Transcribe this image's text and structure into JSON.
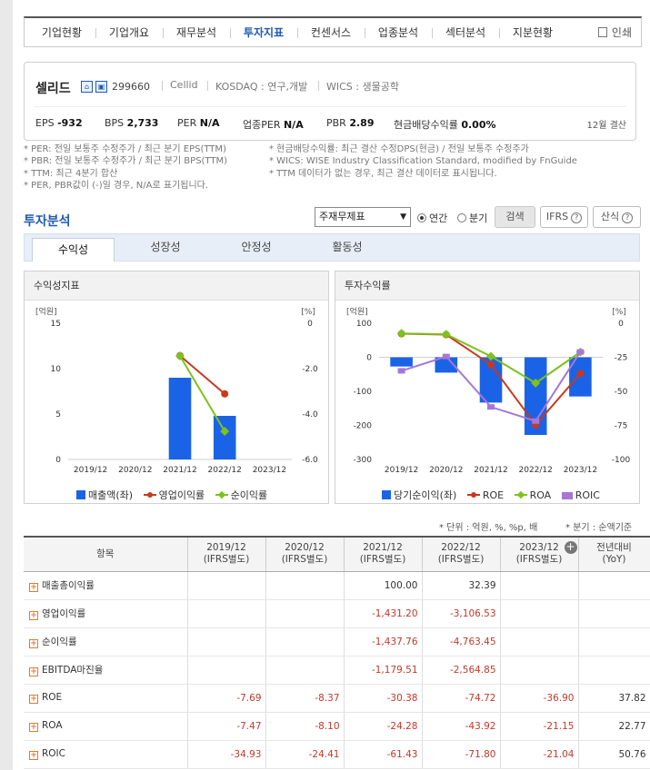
{
  "nav": {
    "items": [
      "기업현황",
      "기업개요",
      "재무분석",
      "투자지표",
      "컨센서스",
      "업종분석",
      "섹터분석",
      "지분현황"
    ],
    "active_index": 3,
    "print_label": "인쇄"
  },
  "company": {
    "name": "셀리드",
    "code": "299660",
    "eng_name": "Cellid",
    "market": "KOSDAQ : 연구,개발",
    "wics": "WICS : 생물공학",
    "icon1": "home-icon",
    "icon2": "building-icon",
    "metrics": [
      {
        "label": "EPS",
        "value": "-932"
      },
      {
        "label": "BPS",
        "value": "2,733"
      },
      {
        "label": "PER",
        "value": "N/A"
      },
      {
        "label": "업종PER",
        "value": "N/A"
      },
      {
        "label": "PBR",
        "value": "2.89"
      },
      {
        "label": "현금배당수익률",
        "value": "0.00%"
      }
    ],
    "settlement": "12월 결산"
  },
  "notes": {
    "left": [
      "* PER: 전일 보통주 수정주가 / 최근 분기 EPS(TTM)",
      "* PBR: 전일 보통주 수정주가 / 최근 분기 BPS(TTM)",
      "* TTM: 최근 4분기 합산",
      "* PER, PBR값이 (-)일 경우, N/A로 표기됩니다."
    ],
    "right": [
      "* 현금배당수익률: 최근 결산 수정DPS(현금) / 전일 보통주 수정주가",
      "* WICS: WISE Industry Classification Standard, modified by FnGuide",
      "* TTM 데이터가 없는 경우, 최근 결산 데이터로 표시됩니다."
    ]
  },
  "analysis": {
    "title": "투자분석",
    "select_value": "주재무제표",
    "radio_annual": "연간",
    "radio_quarter": "분기",
    "selected_radio": "annual",
    "search_btn": "검색",
    "ifrs_btn": "IFRS",
    "formula_btn": "산식",
    "tabs": [
      "수익성",
      "성장성",
      "안정성",
      "활동성"
    ],
    "active_tab": 0
  },
  "colors": {
    "blue": "#1b63e6",
    "red": "#c7391e",
    "green": "#7dc21e",
    "purple": "#a776d6",
    "accent": "#1f5ab4",
    "negative": "#c0392b"
  },
  "charts": {
    "left_title": "수익성지표",
    "right_title": "투자수익률",
    "left_legend": [
      "매출액(좌)",
      "영업이익률",
      "순이익률"
    ],
    "right_legend": [
      "당기순이익(좌)",
      "ROE",
      "ROA",
      "ROIC"
    ]
  },
  "chart_data": [
    {
      "type": "bar",
      "title": "수익성지표",
      "categories": [
        "2019/12",
        "2020/12",
        "2021/12",
        "2022/12",
        "2023/12"
      ],
      "left_axis": {
        "label": "[억원]",
        "range": [
          0,
          15
        ],
        "ticks": [
          "15",
          "10",
          "5",
          "0"
        ]
      },
      "right_axis": {
        "label": "[%]",
        "range": [
          -6.0,
          0
        ],
        "ticks": [
          "0",
          "-2.0",
          "-4.0",
          "-6.0"
        ]
      },
      "series": [
        {
          "name": "매출액(좌)",
          "kind": "bar",
          "axis": "left",
          "values": [
            null,
            null,
            9.0,
            4.8,
            null
          ]
        },
        {
          "name": "영업이익률",
          "kind": "line",
          "axis": "right",
          "note": "x100",
          "values": [
            null,
            null,
            -1.43,
            -3.11,
            null
          ]
        },
        {
          "name": "순이익률",
          "kind": "line",
          "axis": "right",
          "note": "x100",
          "values": [
            null,
            null,
            -1.44,
            -4.76,
            null
          ]
        }
      ]
    },
    {
      "type": "bar",
      "title": "투자수익률",
      "categories": [
        "2019/12",
        "2020/12",
        "2021/12",
        "2022/12",
        "2023/12"
      ],
      "left_axis": {
        "label": "[억원]",
        "range": [
          -300,
          100
        ],
        "ticks": [
          "100",
          "0",
          "-100",
          "-200",
          "-300"
        ]
      },
      "right_axis": {
        "label": "[%]",
        "range": [
          -100,
          0
        ],
        "ticks": [
          "0",
          "-25",
          "-50",
          "-75",
          "-100"
        ]
      },
      "series": [
        {
          "name": "당기순이익(좌)",
          "kind": "bar",
          "axis": "left",
          "values": [
            -27,
            -45,
            -133,
            -228,
            -115
          ]
        },
        {
          "name": "ROE",
          "kind": "line",
          "axis": "right",
          "values": [
            -7.69,
            -8.37,
            -30.38,
            -74.72,
            -36.9
          ]
        },
        {
          "name": "ROA",
          "kind": "line",
          "axis": "right",
          "values": [
            -7.47,
            -8.1,
            -24.28,
            -43.92,
            -21.15
          ]
        },
        {
          "name": "ROIC",
          "kind": "line",
          "axis": "right",
          "values": [
            -34.93,
            -24.41,
            -61.43,
            -71.8,
            -21.04
          ]
        }
      ]
    }
  ],
  "table": {
    "unit_note": "* 단위 : 억원, %, %p, 배",
    "quarter_note": "* 분기 : 순액기준",
    "headers": [
      {
        "line1": "항목",
        "line2": ""
      },
      {
        "line1": "2019/12",
        "line2": "(IFRS별도)"
      },
      {
        "line1": "2020/12",
        "line2": "(IFRS별도)"
      },
      {
        "line1": "2021/12",
        "line2": "(IFRS별도)"
      },
      {
        "line1": "2022/12",
        "line2": "(IFRS별도)"
      },
      {
        "line1": "2023/12",
        "line2": "(IFRS별도)"
      },
      {
        "line1": "전년대비",
        "line2": "(YoY)"
      }
    ],
    "rows": [
      {
        "label": "매출총이익률",
        "cells": [
          "",
          "",
          "100.00",
          "32.39",
          "",
          ""
        ]
      },
      {
        "label": "영업이익률",
        "cells": [
          "",
          "",
          "-1,431.20",
          "-3,106.53",
          "",
          ""
        ]
      },
      {
        "label": "순이익률",
        "cells": [
          "",
          "",
          "-1,437.76",
          "-4,763.45",
          "",
          ""
        ]
      },
      {
        "label": "EBITDA마진율",
        "cells": [
          "",
          "",
          "-1,179.51",
          "-2,564.85",
          "",
          ""
        ]
      },
      {
        "label": "ROE",
        "cells": [
          "-7.69",
          "-8.37",
          "-30.38",
          "-74.72",
          "-36.90",
          "37.82"
        ]
      },
      {
        "label": "ROA",
        "cells": [
          "-7.47",
          "-8.10",
          "-24.28",
          "-43.92",
          "-21.15",
          "22.77"
        ]
      },
      {
        "label": "ROIC",
        "cells": [
          "-34.93",
          "-24.41",
          "-61.43",
          "-71.80",
          "-21.04",
          "50.76"
        ]
      }
    ]
  }
}
